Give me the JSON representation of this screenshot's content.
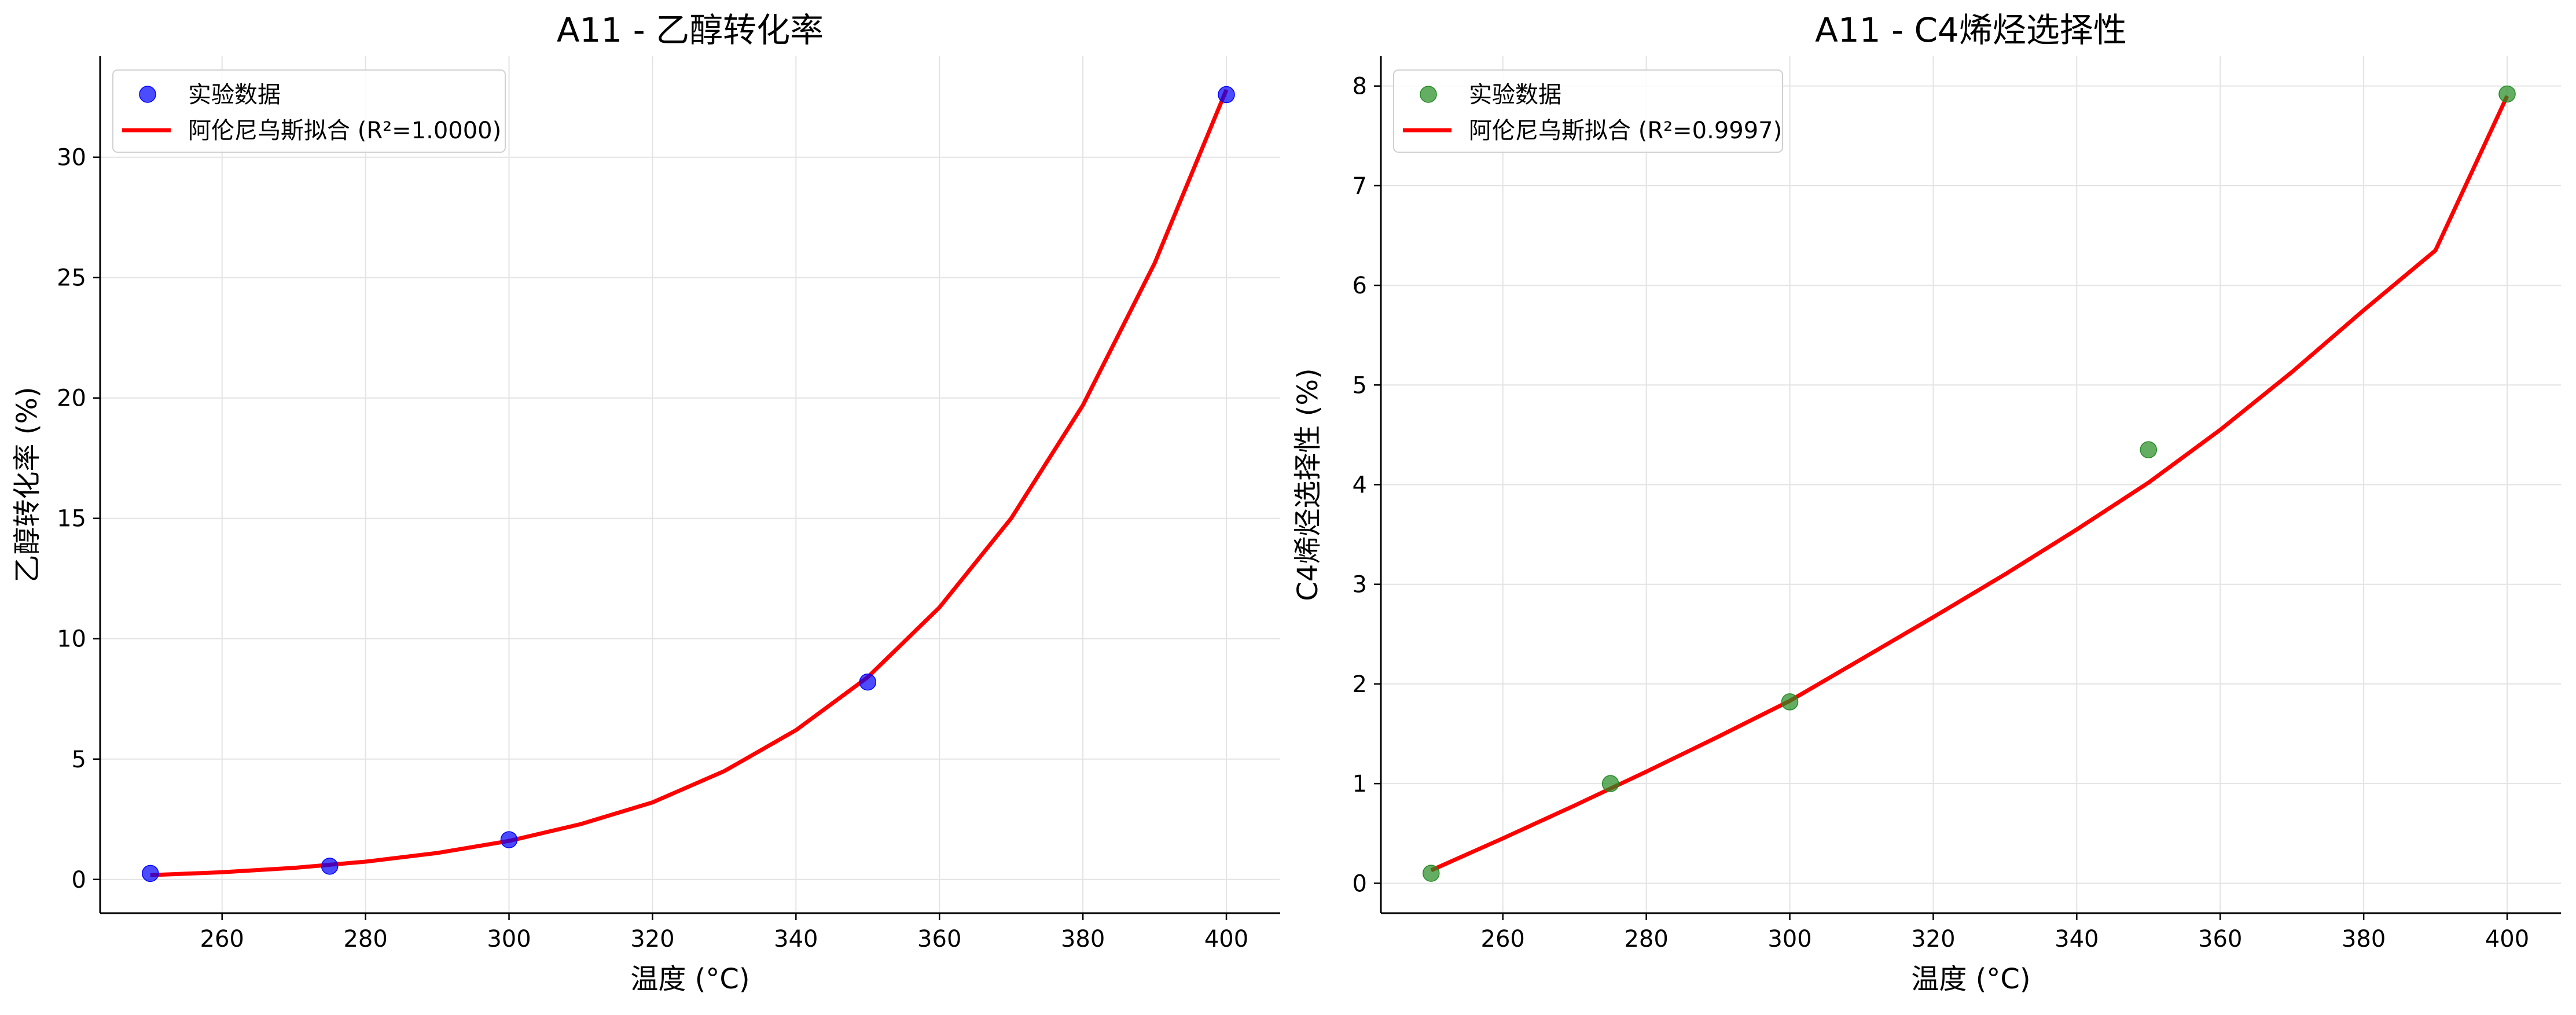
{
  "chart_data": [
    {
      "type": "scatter",
      "title": "A11 - 乙醇转化率",
      "xlabel": "温度 (°C)",
      "ylabel": "乙醇转化率 (%)",
      "xlim": [
        243,
        407.5
      ],
      "ylim": [
        -1.4,
        34.2
      ],
      "xticks": [
        260,
        280,
        300,
        320,
        340,
        360,
        380,
        400
      ],
      "yticks": [
        0,
        5,
        10,
        15,
        20,
        25,
        30
      ],
      "grid": true,
      "legend_position": "top-left",
      "series": [
        {
          "name": "实验数据",
          "kind": "scatter",
          "color": "#0000ff",
          "x": [
            250,
            275,
            300,
            350,
            400
          ],
          "y": [
            0.25,
            0.55,
            1.65,
            8.2,
            32.6
          ]
        },
        {
          "name": "阿伦尼乌斯拟合 (R²=1.0000)",
          "kind": "line",
          "color": "#ff0000",
          "x": [
            250,
            260,
            270,
            280,
            290,
            300,
            310,
            320,
            330,
            340,
            350,
            360,
            370,
            380,
            390,
            400
          ],
          "y": [
            0.18,
            0.3,
            0.48,
            0.74,
            1.1,
            1.6,
            2.3,
            3.2,
            4.5,
            6.2,
            8.4,
            11.3,
            15.0,
            19.7,
            25.6,
            32.8
          ]
        }
      ]
    },
    {
      "type": "scatter",
      "title": "A11 - C4烯烃选择性",
      "xlabel": "温度 (°C)",
      "ylabel": "C4烯烃选择性 (%)",
      "xlim": [
        243,
        407.5
      ],
      "ylim": [
        -0.3,
        8.3
      ],
      "xticks": [
        260,
        280,
        300,
        320,
        340,
        360,
        380,
        400
      ],
      "yticks": [
        0,
        1,
        2,
        3,
        4,
        5,
        6,
        7,
        8
      ],
      "grid": true,
      "legend_position": "top-left",
      "series": [
        {
          "name": "实验数据",
          "kind": "scatter",
          "color": "#228b22",
          "x": [
            250,
            275,
            300,
            350,
            400
          ],
          "y": [
            0.1,
            1.0,
            1.82,
            4.35,
            7.92
          ]
        },
        {
          "name": "阿伦尼乌斯拟合 (R²=0.9997)",
          "kind": "line",
          "color": "#ff0000",
          "x": [
            250,
            260,
            270,
            280,
            290,
            300,
            310,
            320,
            330,
            340,
            350,
            360,
            370,
            380,
            390,
            400
          ],
          "y": [
            0.13,
            0.45,
            0.78,
            1.12,
            1.47,
            1.83,
            2.25,
            2.67,
            3.1,
            3.55,
            4.02,
            4.55,
            5.13,
            5.75,
            6.35,
            7.9
          ]
        }
      ]
    }
  ]
}
